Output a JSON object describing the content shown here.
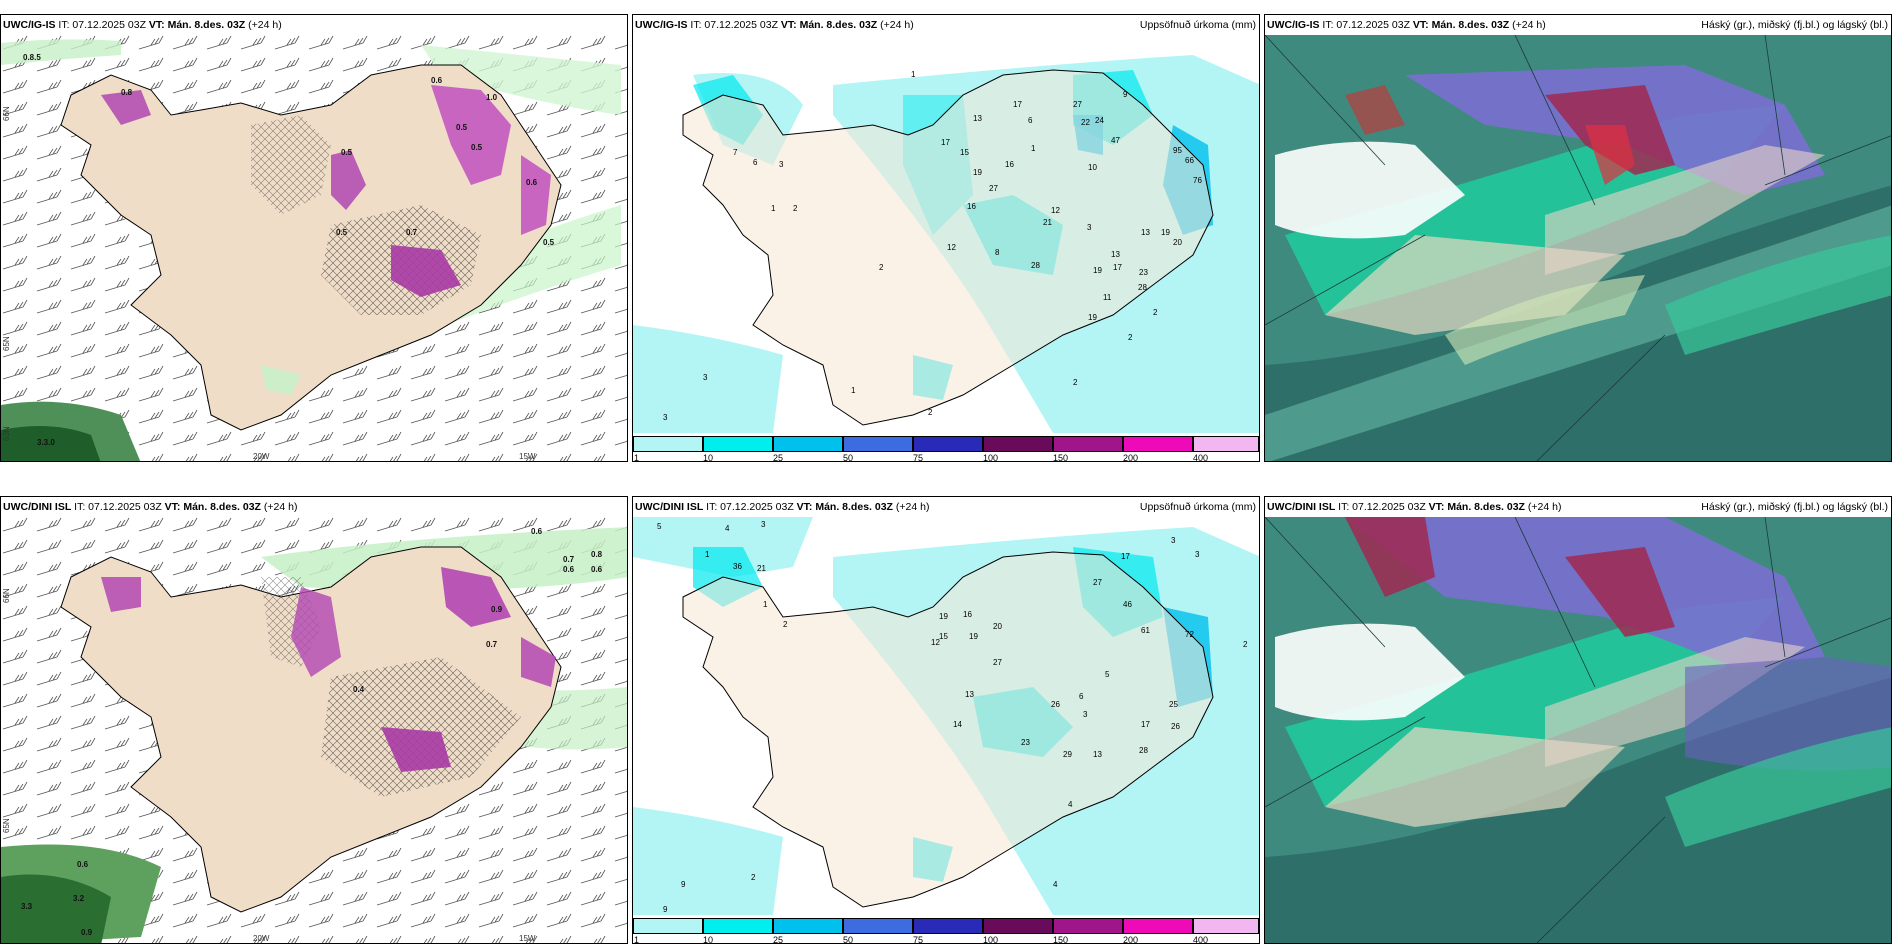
{
  "panels": {
    "top_left": {
      "model": "UWC/IG-IS",
      "it": "IT: 07.12.2025 03Z",
      "vt_label": "VT:",
      "vt_value": "Mán. 8.des. 03Z",
      "lead": "(+24 h)",
      "right": ""
    },
    "top_mid": {
      "model": "UWC/IG-IS",
      "it": "IT: 07.12.2025 03Z",
      "vt_label": "VT:",
      "vt_value": "Mán. 8.des. 03Z",
      "lead": "(+24 h)",
      "right": "Uppsöfnuð úrkoma (mm)"
    },
    "top_right": {
      "model": "UWC/IG-IS",
      "it": "IT: 07.12.2025 03Z",
      "vt_label": "VT:",
      "vt_value": "Mán. 8.des. 03Z",
      "lead": "(+24 h)",
      "right": "Háský (gr.), miðský (fj.bl.) og lágský (bl.)"
    },
    "bot_left": {
      "model": "UWC/DINI ISL",
      "it": "IT: 07.12.2025 03Z",
      "vt_label": "VT:",
      "vt_value": "Mán. 8.des. 03Z",
      "lead": "(+24 h)",
      "right": ""
    },
    "bot_mid": {
      "model": "UWC/DINI ISL",
      "it": "IT: 07.12.2025 03Z",
      "vt_label": "VT:",
      "vt_value": "Mán. 8.des. 03Z",
      "lead": "(+24 h)",
      "right": "Uppsöfnuð úrkoma (mm)"
    },
    "bot_right": {
      "model": "UWC/DINI ISL",
      "it": "IT: 07.12.2025 03Z",
      "vt_label": "VT:",
      "vt_value": "Mán. 8.des. 03Z",
      "lead": "(+24 h)",
      "right": "Háský (gr.), miðský (fj.bl.) og lágský (bl.)"
    }
  },
  "axes": {
    "lon_20w": "20W",
    "lon_15w": "15W",
    "lat_66n": "66N",
    "lat_65n": "65N",
    "lat_63n": "63N"
  },
  "colorbar": {
    "ticks": [
      "1",
      "10",
      "25",
      "50",
      "75",
      "100",
      "150",
      "200",
      "400"
    ],
    "colors": [
      "#b3f5f5",
      "#00eeee",
      "#00c0ee",
      "#3d6be0",
      "#2a2ab8",
      "#6a0a5a",
      "#a0158a",
      "#ee0ab8",
      "#f2b6f0"
    ]
  },
  "top_left_values": [
    "0.8.5",
    "0.6",
    "1.0",
    "0.5",
    "0.5",
    "0.7",
    "0.5",
    "0.6",
    "0.5",
    "0.5",
    "0.8",
    "3.3.0"
  ],
  "top_mid_values": [
    "1",
    "17",
    "13",
    "6",
    "27",
    "9",
    "24",
    "22",
    "47",
    "21",
    "10",
    "1",
    "17",
    "15",
    "19",
    "16",
    "27",
    "16",
    "12",
    "8",
    "21",
    "3",
    "13",
    "13",
    "19",
    "20",
    "28",
    "23",
    "11",
    "19",
    "12",
    "2",
    "3",
    "3",
    "2",
    "1",
    "7",
    "17",
    "3",
    "2",
    "6",
    "95",
    "76",
    "66",
    "17",
    "14",
    "16",
    "19",
    "18"
  ],
  "bot_left_values": [
    "0.6",
    "0.7",
    "0.8",
    "0.6",
    "0.6",
    "0.9",
    "0.7",
    "0.4",
    "0.6",
    "3.3",
    "3.2",
    "0.9"
  ],
  "bot_mid_values": [
    "5",
    "4",
    "3",
    "1",
    "36",
    "21",
    "3",
    "17",
    "27",
    "46",
    "72",
    "61",
    "15",
    "16",
    "19",
    "12",
    "16",
    "20",
    "27",
    "26",
    "23",
    "25",
    "17",
    "28",
    "26",
    "29",
    "13",
    "4",
    "1",
    "2",
    "9",
    "9",
    "2",
    "2",
    "4",
    "14",
    "13",
    "3",
    "5",
    "6"
  ]
}
